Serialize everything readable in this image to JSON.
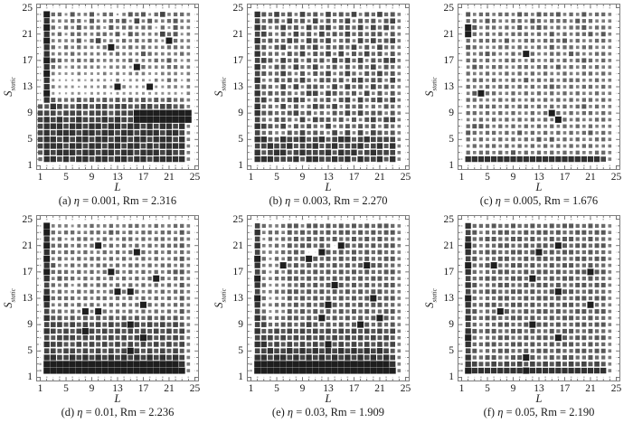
{
  "figure_title": "",
  "axes": {
    "x_label": "L",
    "y_label_main": "S",
    "y_label_sub": "static",
    "x_ticks": [
      "1",
      "5",
      "9",
      "13",
      "17",
      "21",
      "25"
    ],
    "y_ticks": [
      "1",
      "5",
      "9",
      "13",
      "17",
      "21",
      "25"
    ],
    "x_range": [
      1,
      25
    ],
    "y_range": [
      1,
      25
    ]
  },
  "labels": {
    "eta_symbol": "η",
    "rm_label": "Rm",
    "equals": "=",
    "separator": ","
  },
  "colors": {
    "square_light": "#c8c8c8",
    "square_dark": "#1e1e1e",
    "box_border": "#7d7d7d",
    "tick_color": "#4a4a4a",
    "text": "#1a1a1a",
    "background": "#ffffff"
  },
  "chart_data": [
    {
      "type": "heatmap",
      "id": "a",
      "tag": "(a)",
      "eta": "0.001",
      "rm": "2.316",
      "caption": "(a) η = 0.001, Rm = 2.316",
      "xlabel": "L",
      "ylabel": "S_static",
      "value_scale": "0 = empty dot, 9 = full dark cell",
      "matrix": [
        "0100110010010100100101000",
        "1955364463552465635745540",
        "1844455364455637464456440",
        "1953546455364554552536440",
        "0845355445546365444756340",
        "1944446357444545454395440",
        "1853545444594454544455440",
        "0844454444445444654444540",
        "1965445454444454445464340",
        "1854344444344439544455440",
        "1943334333434344433444340",
        "1832223233324233324354240",
        "0843332333439433393344340",
        "1932233233323333333333240",
        "1865556565656565656565540",
        "6687667767767766776776640",
        "7776777677767779999999990",
        "7878778777878779999999990",
        "7888788788788788787887840",
        "7878887887887887888788740",
        "7887878878878878878887840",
        "7888788788788788787888840",
        "6878887887887887888787740",
        "5887878878878878878888840",
        "0101010101010101010101010"
      ]
    },
    {
      "type": "heatmap",
      "id": "b",
      "tag": "(b)",
      "eta": "0.003",
      "rm": "2.270",
      "caption": "(b) η = 0.003, Rm = 2.270",
      "xlabel": "L",
      "ylabel": "S_static",
      "value_scale": "0 = empty dot, 9 = full dark cell",
      "matrix": [
        "0101010011010100110010100",
        "0865756475647565746575640",
        "0756647564746557465646740",
        "1864575647567466574757540",
        "0775464756475657565664640",
        "0856557647657456475756740",
        "1764674565746565746475540",
        "0855546574657474657564640",
        "0776475646564757574657740",
        "1854664755745646465746540",
        "0765575464657457546575640",
        "0844656575466564675664740",
        "1765474746654747564756540",
        "0856565457747655647464640",
        "0774656764556467475675740",
        "1855474645765746564546540",
        "0866556756454657575664640",
        "0754665474766564646757740",
        "1876574656547456565646540",
        "0755446575654747474765640",
        "0886687786786788678777740",
        "1778778677867867786786840",
        "0867886787778687867877740",
        "1888777868877878687786840",
        "0101001011001010101010100"
      ]
    },
    {
      "type": "heatmap",
      "id": "c",
      "tag": "(c)",
      "eta": "0.005",
      "rm": "1.676",
      "caption": "(c) η = 0.005, Rm = 1.676",
      "xlabel": "L",
      "ylabel": "S_static",
      "value_scale": "0 = empty dot, 9 = full dark cell",
      "matrix": [
        "0101100101010101001010010",
        "0645545546546556454645540",
        "0554654455465455546554440",
        "1964554546456545455645540",
        "0954545455545464545564640",
        "0545554644554555645445540",
        "1654445545445464554554440",
        "0545654454954455465445540",
        "1554544554454454545654540",
        "0465455445545546454545440",
        "0544544545454544544554540",
        "0455454454645454555445440",
        "1544545545454565454554540",
        "0469554454545454545445440",
        "0554445454454545454554540",
        "1445554545545454545645440",
        "0554545454454595454554540",
        "1445454545454549545445540",
        "0566545454545454545454440",
        "1654554546454545454564540",
        "0545445454546464545445540",
        "1454554545454545454554440",
        "0545545464545454545445540",
        "1888888888888888888888740",
        "0101010100101010010101010"
      ]
    },
    {
      "type": "heatmap",
      "id": "d",
      "tag": "(d)",
      "eta": "0.01",
      "rm": "2.236",
      "caption": "(d) η = 0.01, Rm = 2.236",
      "xlabel": "L",
      "ylabel": "S_static",
      "value_scale": "0 = empty dot, 9 = full dark cell",
      "matrix": [
        "0101010101001010101001010",
        "1944434454454455445445540",
        "1954554455465454554554640",
        "1845345544544554545545540",
        "1955545459454545454555640",
        "1854554544545459545454540",
        "1945445455454544545445640",
        "1864454545545455454554540",
        "1955545454595454545456640",
        "0846554545454545459545540",
        "0754534545545454545454640",
        "1845445454459595454545540",
        "0955554545545454545454640",
        "0844545454454545954545540",
        "1755454949545454545454640",
        "0866565656565656565656540",
        "1777676767676797676767640",
        "0876767976767676767676740",
        "1767776767676767976767640",
        "0877667676767676767676740",
        "1776776767676797676767640",
        "0887787878787878787878740",
        "2999999999999999999999840",
        "2999999999999999999999940",
        "0101010101010101010101010"
      ]
    },
    {
      "type": "heatmap",
      "id": "e",
      "tag": "(e)",
      "eta": "0.03",
      "rm": "1.909",
      "caption": "(e) η = 0.03, Rm = 1.909",
      "xlabel": "L",
      "ylabel": "S_static",
      "value_scale": "0 = empty dot, 9 = full dark cell",
      "matrix": [
        "0101001010101010101010010",
        "1754456646656565656566540",
        "0845546565656566565656640",
        "1735455656565655656565540",
        "0844546566565096565656640",
        "1744455650096565656565540",
        "0953546569656565656556640",
        "0844495656565656569665540",
        "1753546565656565656556640",
        "0944556656565656565665540",
        "0853445565656965656556640",
        "1744556656565656565665540",
        "0953446565656565656956640",
        "0844555656569656565665540",
        "1753446565656565656556640",
        "0864556656595656565696540",
        "1775566567656565696565640",
        "0866767676767676767676740",
        "1777676767676767676767640",
        "0886767676769676767676740",
        "1778778787878787878787640",
        "0887887878787878787878740",
        "2999999999999999999999840",
        "2999999999999999999999940",
        "0101010101010101010101010"
      ]
    },
    {
      "type": "heatmap",
      "id": "f",
      "tag": "(f)",
      "eta": "0.05",
      "rm": "2.190",
      "caption": "(f) η = 0.05, Rm = 2.190",
      "xlabel": "L",
      "ylabel": "S_static",
      "value_scale": "0 = empty dot, 9 = full dark cell",
      "matrix": [
        "0100101010010101010010100",
        "1855565565565565665565540",
        "1764556655656656556656640",
        "0855665566565565665565540",
        "1954556655656659656656640",
        "0855665566569565665565540",
        "1764556655656656556656640",
        "0955695566565565665565540",
        "1854556655656656556696640",
        "0755665566595565665565540",
        "1864556655656656556656640",
        "0755665566565569665565540",
        "1954556655656656556656640",
        "0855665566565565665595540",
        "1764559655656656556656640",
        "0855665566565565665565540",
        "1754556655696656556656640",
        "0865665566565565665565540",
        "1954556655656659656656640",
        "0855665566565565665565540",
        "1764556655656656556656640",
        "1855665566965565665565540",
        "2876676767676767676767640",
        "2988888888988888888888840",
        "0101010101010101010101010"
      ]
    }
  ]
}
